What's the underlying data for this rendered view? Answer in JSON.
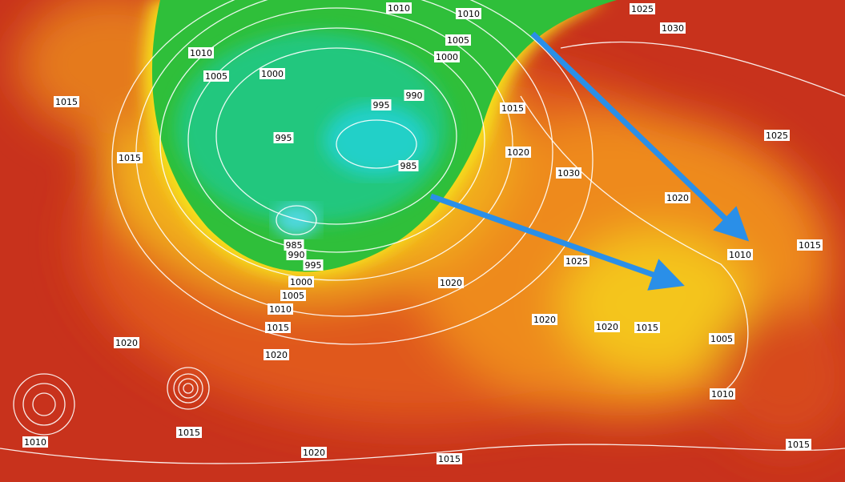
{
  "isobar_labels": [
    "1010",
    "1010",
    "1025",
    "1030",
    "1010",
    "1005",
    "1000",
    "1005",
    "1000",
    "1015",
    "995",
    "990",
    "1015",
    "995",
    "985",
    "1015",
    "1020",
    "1030",
    "1025",
    "1020",
    "985",
    "990",
    "995",
    "1015",
    "1010",
    "1025",
    "1000",
    "1005",
    "1010",
    "1020",
    "1015",
    "1020",
    "1020",
    "1015",
    "1005",
    "1020",
    "1020",
    "1010",
    "1010",
    "1015",
    "1020",
    "1015",
    "1015"
  ]
}
